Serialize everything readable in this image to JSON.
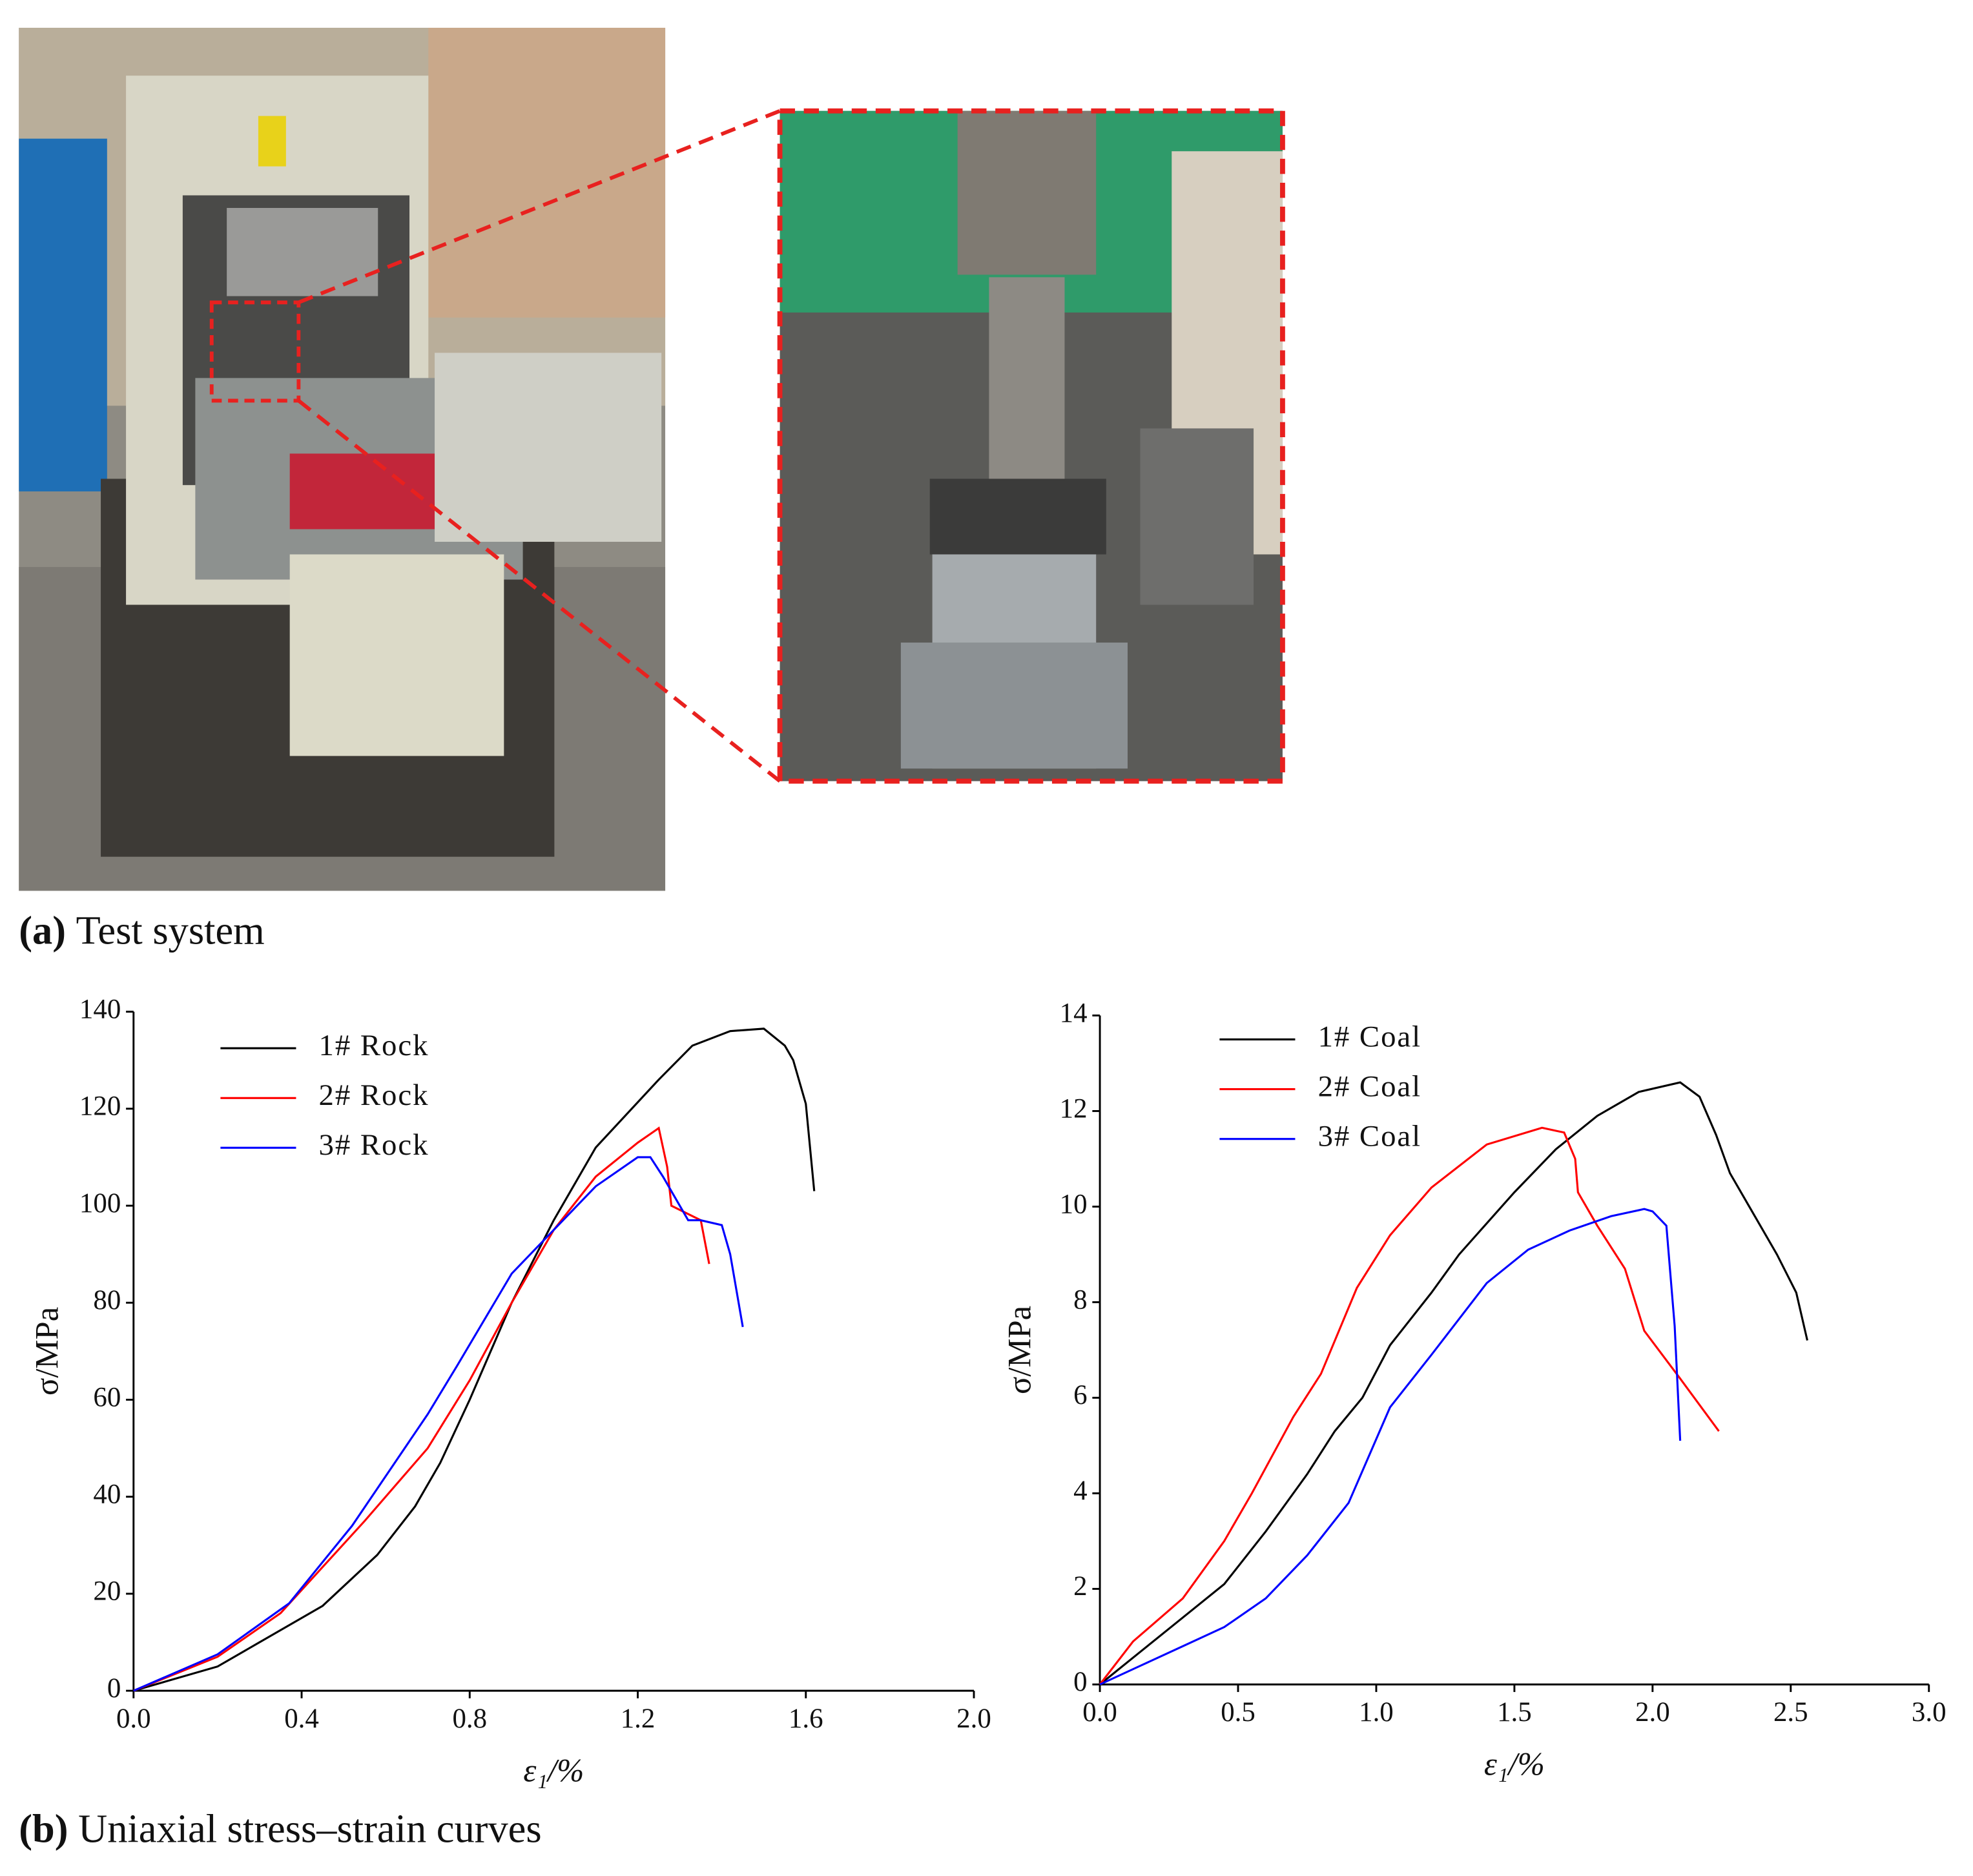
{
  "captions": [
    {
      "label": "(a)",
      "text": "Test system"
    },
    {
      "label": "(b)",
      "text": "Uniaxial stress–strain curves"
    }
  ],
  "chart_data": [
    {
      "type": "line",
      "x_label": "ε₁/%",
      "y_label": "σ/MPa",
      "xlim": [
        0,
        2
      ],
      "xticks": [
        {
          "value": 0,
          "label": "0.0"
        },
        {
          "value": 0.4,
          "label": "0.4"
        },
        {
          "value": 0.8,
          "label": "0.8"
        },
        {
          "value": 1.2,
          "label": "1.2"
        },
        {
          "value": 1.6,
          "label": "1.6"
        },
        {
          "value": 2,
          "label": "2.0"
        }
      ],
      "ylim": [
        0,
        140
      ],
      "yticks": [
        0,
        20,
        40,
        60,
        80,
        100,
        120,
        140
      ],
      "legend": "upper-left",
      "series": [
        {
          "name": "1# Rock",
          "color": "#000000",
          "x": [
            0,
            0.2,
            0.3,
            0.45,
            0.58,
            0.67,
            0.73,
            0.8,
            0.9,
            1.0,
            1.1,
            1.25,
            1.33,
            1.42,
            1.5,
            1.55,
            1.57,
            1.6,
            1.62
          ],
          "values": [
            0,
            5,
            10,
            17.5,
            28,
            38,
            47,
            60,
            80,
            97,
            112,
            126,
            133,
            136,
            136.5,
            133,
            130,
            121,
            103
          ]
        },
        {
          "name": "2# Rock",
          "color": "#ff0000",
          "x": [
            0,
            0.2,
            0.35,
            0.55,
            0.7,
            0.8,
            0.9,
            1.0,
            1.1,
            1.2,
            1.25,
            1.27,
            1.28,
            1.35,
            1.37
          ],
          "values": [
            0,
            7,
            16,
            35,
            50,
            64,
            80,
            95,
            106,
            113,
            116,
            108,
            100,
            97,
            88
          ]
        },
        {
          "name": "3# Rock",
          "color": "#0000ff",
          "x": [
            0,
            0.2,
            0.37,
            0.52,
            0.7,
            0.77,
            0.9,
            1.0,
            1.1,
            1.2,
            1.23,
            1.26,
            1.3,
            1.32,
            1.35,
            1.4,
            1.42,
            1.45
          ],
          "values": [
            0,
            7.5,
            18,
            34,
            57,
            67,
            86,
            95,
            104,
            110,
            110,
            106,
            100,
            97,
            97,
            96,
            90,
            75
          ]
        }
      ]
    },
    {
      "type": "line",
      "x_label": "ε₁/%",
      "y_label": "σ/MPa",
      "xlim": [
        0,
        3
      ],
      "xticks": [
        {
          "value": 0,
          "label": "0.0"
        },
        {
          "value": 0.5,
          "label": "0.5"
        },
        {
          "value": 1,
          "label": "1.0"
        },
        {
          "value": 1.5,
          "label": "1.5"
        },
        {
          "value": 2,
          "label": "2.0"
        },
        {
          "value": 2.5,
          "label": "2.5"
        },
        {
          "value": 3,
          "label": "3.0"
        }
      ],
      "ylim": [
        0,
        14
      ],
      "yticks": [
        0,
        2,
        4,
        6,
        8,
        10,
        12,
        14
      ],
      "legend": "upper-left",
      "series": [
        {
          "name": "1# Coal",
          "color": "#000000",
          "x": [
            0,
            0.15,
            0.3,
            0.45,
            0.6,
            0.75,
            0.85,
            0.95,
            1.05,
            1.2,
            1.3,
            1.5,
            1.65,
            1.8,
            1.95,
            2.1,
            2.17,
            2.23,
            2.28,
            2.35,
            2.45,
            2.52,
            2.56
          ],
          "values": [
            0,
            0.7,
            1.4,
            2.1,
            3.2,
            4.4,
            5.3,
            6,
            7.1,
            8.2,
            9,
            10.3,
            11.2,
            11.9,
            12.4,
            12.6,
            12.3,
            11.5,
            10.7,
            10,
            9,
            8.2,
            7.2
          ]
        },
        {
          "name": "2# Coal",
          "color": "#ff0000",
          "x": [
            0,
            0.12,
            0.3,
            0.45,
            0.55,
            0.7,
            0.8,
            0.93,
            1.05,
            1.2,
            1.4,
            1.6,
            1.68,
            1.72,
            1.73,
            1.8,
            1.9,
            1.97,
            2.1,
            2.24
          ],
          "values": [
            0,
            0.9,
            1.8,
            3,
            4,
            5.6,
            6.5,
            8.3,
            9.4,
            10.4,
            11.3,
            11.65,
            11.55,
            11,
            10.3,
            9.6,
            8.7,
            7.4,
            6.4,
            5.3
          ]
        },
        {
          "name": "3# Coal",
          "color": "#0000ff",
          "x": [
            0,
            0.15,
            0.3,
            0.45,
            0.6,
            0.75,
            0.9,
            1.05,
            1.2,
            1.4,
            1.55,
            1.7,
            1.85,
            1.97,
            2.0,
            2.05,
            2.08,
            2.1
          ],
          "values": [
            0,
            0.4,
            0.8,
            1.2,
            1.8,
            2.7,
            3.8,
            5.8,
            6.9,
            8.4,
            9.1,
            9.5,
            9.8,
            9.95,
            9.9,
            9.6,
            7.5,
            5.1
          ]
        }
      ]
    }
  ]
}
